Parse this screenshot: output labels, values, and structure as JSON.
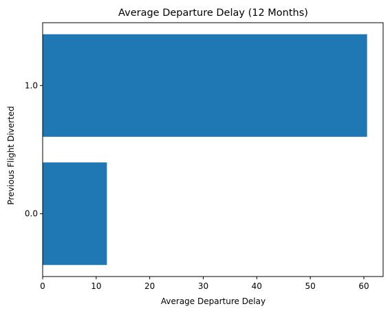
{
  "chart_data": {
    "type": "bar",
    "orientation": "horizontal",
    "title": "Average Departure Delay (12 Months)",
    "xlabel": "Average Departure Delay",
    "ylabel": "Previous Flight Diverted",
    "categories": [
      "0.0",
      "1.0"
    ],
    "values": [
      12.0,
      60.6
    ],
    "xlim": [
      0,
      63.6
    ],
    "x_ticks": [
      0,
      10,
      20,
      30,
      40,
      50,
      60
    ],
    "bar_color": "#1f77b4",
    "grid": false,
    "legend": "none"
  }
}
